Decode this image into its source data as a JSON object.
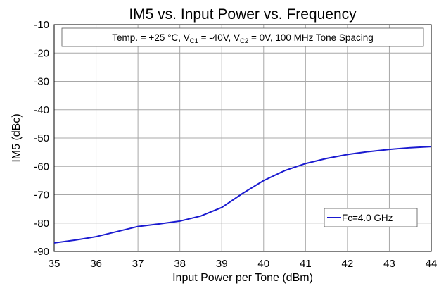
{
  "chart_data": {
    "type": "line",
    "title": "IM5 vs. Input Power vs. Frequency",
    "annotation": [
      "Temp. = +25 °C, V",
      "C1",
      " = -40V, V",
      "C2",
      " = 0V, 100 MHz Tone Spacing"
    ],
    "x_label": "Input Power per Tone (dBm)",
    "y_label": "IM5 (dBc)",
    "xlim": [
      35,
      44
    ],
    "ylim": [
      -90,
      -10
    ],
    "xticks": [
      35,
      36,
      37,
      38,
      39,
      40,
      41,
      42,
      43,
      44
    ],
    "yticks": [
      -90,
      -80,
      -70,
      -60,
      -50,
      -40,
      -30,
      -20,
      -10
    ],
    "grid": true,
    "legend": "lower right",
    "series": [
      {
        "name": "Fc=4.0 GHz",
        "color": "#1a1ad0",
        "x": [
          35,
          35.5,
          36,
          36.5,
          37,
          37.5,
          38,
          38.5,
          39,
          39.5,
          40,
          40.5,
          41,
          41.5,
          42,
          42.5,
          43,
          43.5,
          44
        ],
        "values": [
          -87,
          -86,
          -84.8,
          -83,
          -81.2,
          -80.3,
          -79.3,
          -77.5,
          -74.5,
          -69.5,
          -65,
          -61.5,
          -59,
          -57.2,
          -55.8,
          -54.8,
          -54,
          -53.4,
          -53
        ]
      }
    ]
  }
}
